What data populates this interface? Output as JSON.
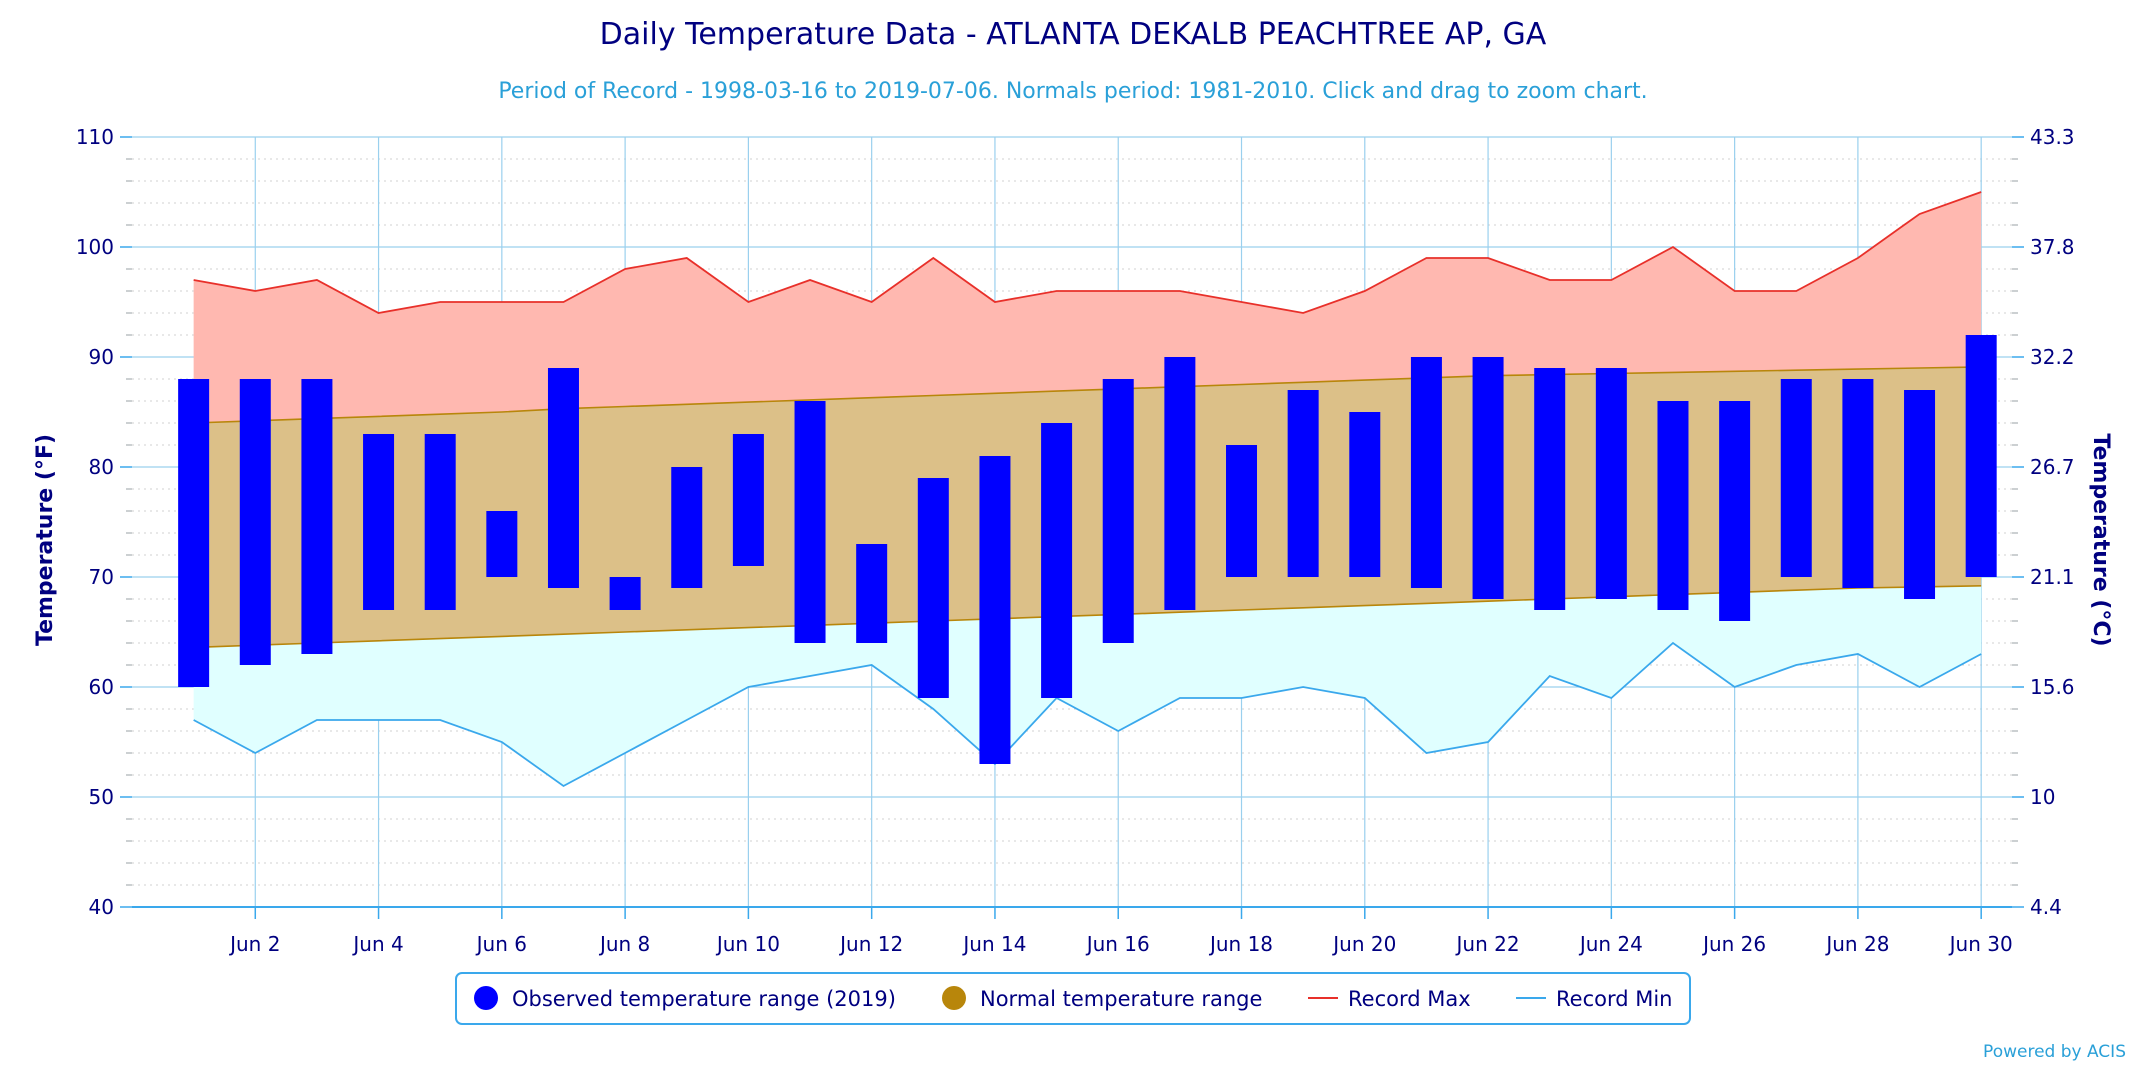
{
  "chart_data": {
    "type": "bar",
    "title": "Daily Temperature Data - ATLANTA DEKALB PEACHTREE AP, GA",
    "subtitle": "Period of Record - 1998-03-16 to 2019-07-06. Normals period: 1981-2010. Click and drag to zoom chart.",
    "ylabel_left": "Temperature (°F)",
    "ylabel_right": "Temperature (°C)",
    "ylim": [
      40,
      110
    ],
    "y_ticks": [
      40,
      50,
      60,
      70,
      80,
      90,
      100,
      110
    ],
    "y2_tick_labels": [
      "4.4",
      "10",
      "15.6",
      "21.1",
      "26.7",
      "32.2",
      "37.8",
      "43.3"
    ],
    "x_days": [
      1,
      2,
      3,
      4,
      5,
      6,
      7,
      8,
      9,
      10,
      11,
      12,
      13,
      14,
      15,
      16,
      17,
      18,
      19,
      20,
      21,
      22,
      23,
      24,
      25,
      26,
      27,
      28,
      29,
      30
    ],
    "x_tick_days": [
      2,
      4,
      6,
      8,
      10,
      12,
      14,
      16,
      18,
      20,
      22,
      24,
      26,
      28,
      30
    ],
    "x_tick_labels": [
      "Jun 2",
      "Jun 4",
      "Jun 6",
      "Jun 8",
      "Jun 10",
      "Jun 12",
      "Jun 14",
      "Jun 16",
      "Jun 18",
      "Jun 20",
      "Jun 22",
      "Jun 24",
      "Jun 26",
      "Jun 28",
      "Jun 30"
    ],
    "grid": true,
    "legend_position": "bottom-center",
    "series": [
      {
        "name": "Observed temperature range (2019)",
        "color": "#0000ff",
        "low": [
          60,
          62,
          63,
          67,
          67,
          70,
          69,
          67,
          69,
          71,
          64,
          64,
          59,
          53,
          59,
          64,
          67,
          70,
          70,
          70,
          69,
          68,
          67,
          68,
          67,
          66,
          70,
          69,
          68,
          70
        ],
        "high": [
          88,
          88,
          88,
          83,
          83,
          76,
          89,
          70,
          80,
          83,
          86,
          73,
          79,
          81,
          84,
          88,
          90,
          82,
          87,
          85,
          90,
          90,
          89,
          89,
          86,
          86,
          88,
          88,
          87,
          92
        ]
      },
      {
        "name": "Normal temperature range",
        "color": "#b8860b",
        "fill_color": "#dcc088",
        "low": [
          63.6,
          63.8,
          64.0,
          64.2,
          64.4,
          64.6,
          64.8,
          65.0,
          65.2,
          65.4,
          65.6,
          65.8,
          66.0,
          66.2,
          66.4,
          66.6,
          66.8,
          67.0,
          67.2,
          67.4,
          67.6,
          67.8,
          68.0,
          68.2,
          68.4,
          68.6,
          68.8,
          69.0,
          69.1,
          69.2
        ],
        "high": [
          84.0,
          84.2,
          84.4,
          84.6,
          84.8,
          85.0,
          85.3,
          85.5,
          85.7,
          85.9,
          86.1,
          86.3,
          86.5,
          86.7,
          86.9,
          87.1,
          87.3,
          87.5,
          87.7,
          87.9,
          88.1,
          88.3,
          88.4,
          88.5,
          88.6,
          88.7,
          88.8,
          88.9,
          89.0,
          89.1
        ]
      },
      {
        "name": "Record Max",
        "color": "#e8302a",
        "fill_color": "#ffb8b0",
        "values": [
          97,
          96,
          97,
          94,
          95,
          95,
          95,
          98,
          99,
          95,
          97,
          95,
          99,
          95,
          96,
          96,
          96,
          95,
          94,
          96,
          99,
          99,
          97,
          97,
          100,
          96,
          96,
          99,
          103,
          105
        ]
      },
      {
        "name": "Record Min",
        "color": "#3aa8ec",
        "fill_color": "#e0ffff",
        "values": [
          57,
          54,
          57,
          57,
          57,
          55,
          51,
          54,
          57,
          60,
          61,
          62,
          58,
          53,
          59,
          56,
          59,
          59,
          60,
          59,
          54,
          55,
          61,
          59,
          64,
          60,
          62,
          63,
          60,
          63
        ]
      }
    ],
    "credit": "Powered by ACIS"
  }
}
